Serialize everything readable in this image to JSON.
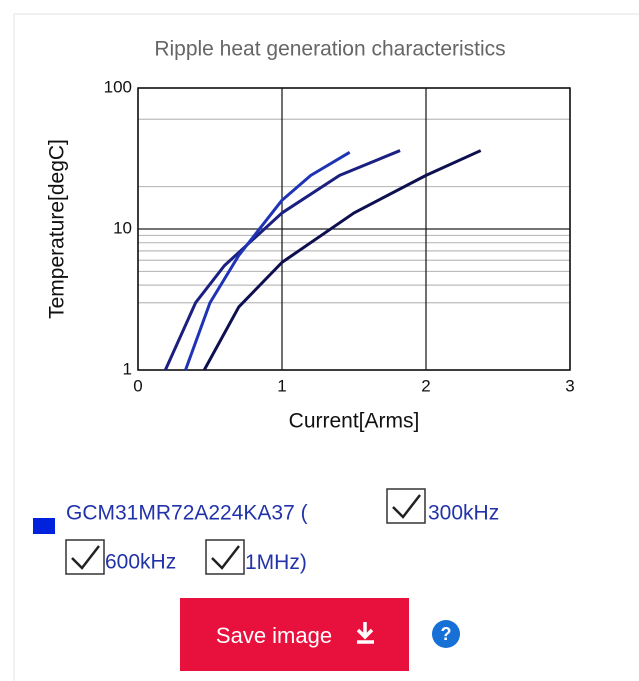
{
  "chart_data": {
    "type": "line",
    "title": "Ripple heat generation characteristics",
    "x_label": "Current[Arms]",
    "y_label": "Temperature[degC]",
    "xlim": [
      0,
      3
    ],
    "xticks": [
      0,
      1,
      2,
      3
    ],
    "ylim": [
      1,
      100
    ],
    "yticks": [
      1,
      10,
      100
    ],
    "ylog": true,
    "minor_yticks": [
      3,
      4,
      5,
      6,
      7,
      8,
      9,
      20,
      60
    ],
    "grid": true,
    "series": [
      {
        "name": "300kHz",
        "color": "#0d0f4f",
        "x": [
          0.46,
          0.7,
          1.0,
          1.5,
          2.0,
          2.38
        ],
        "values": [
          1,
          2.8,
          5.8,
          13,
          24,
          36
        ]
      },
      {
        "name": "600kHz",
        "color": "#1a1f80",
        "x": [
          0.19,
          0.4,
          0.6,
          1.0,
          1.4,
          1.82
        ],
        "values": [
          1,
          3,
          5.5,
          13,
          24,
          36
        ]
      },
      {
        "name": "1MHz",
        "color": "#1f33b5",
        "x": [
          0.33,
          0.5,
          0.7,
          1.0,
          1.2,
          1.47
        ],
        "values": [
          1,
          3,
          6.5,
          16,
          24,
          35
        ]
      }
    ]
  },
  "ui": {
    "part_number": "GCM31MR72A224KA37 (",
    "close": ")",
    "legend_color": "#0022dd",
    "button": "Save image",
    "help": "?"
  }
}
